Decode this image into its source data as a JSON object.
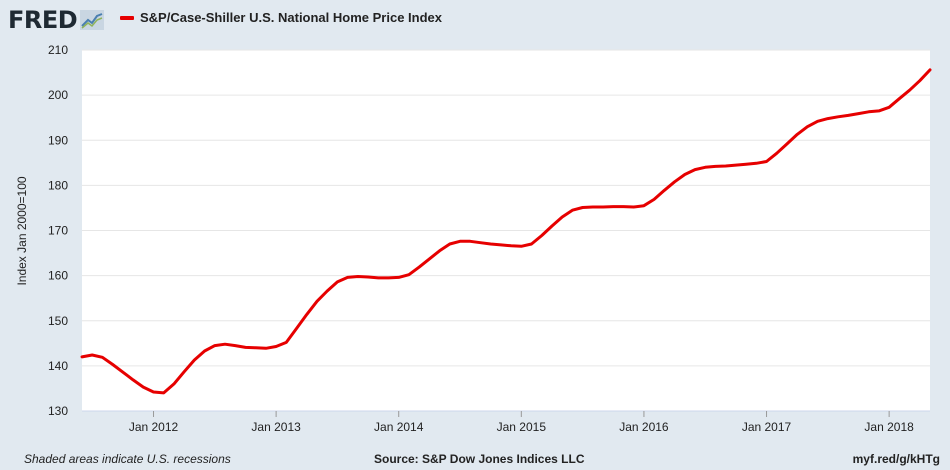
{
  "header": {
    "logo_text": "FRED",
    "legend_label": "S&P/Case-Shiller U.S. National Home Price Index",
    "series_color": "#e60000"
  },
  "footer": {
    "recession_note": "Shaded areas indicate U.S. recessions",
    "source": "Source: S&P Dow Jones Indices LLC",
    "short_url": "myf.red/g/kHTg"
  },
  "chart_data": {
    "type": "line",
    "title": "",
    "xlabel": "",
    "ylabel": "Index Jan 2000=100",
    "ylim": [
      130,
      210
    ],
    "yticks": [
      130,
      140,
      150,
      160,
      170,
      180,
      190,
      200,
      210
    ],
    "xlim": [
      "2011-06",
      "2018-05"
    ],
    "xticks": [
      {
        "value": "2012-01",
        "label": "Jan 2012"
      },
      {
        "value": "2013-01",
        "label": "Jan 2013"
      },
      {
        "value": "2014-01",
        "label": "Jan 2014"
      },
      {
        "value": "2015-01",
        "label": "Jan 2015"
      },
      {
        "value": "2016-01",
        "label": "Jan 2016"
      },
      {
        "value": "2017-01",
        "label": "Jan 2017"
      },
      {
        "value": "2018-01",
        "label": "Jan 2018"
      }
    ],
    "grid": true,
    "series": [
      {
        "name": "S&P/Case-Shiller U.S. National Home Price Index",
        "color": "#e60000",
        "x": [
          "2011-06",
          "2011-07",
          "2011-08",
          "2011-09",
          "2011-10",
          "2011-11",
          "2011-12",
          "2012-01",
          "2012-02",
          "2012-03",
          "2012-04",
          "2012-05",
          "2012-06",
          "2012-07",
          "2012-08",
          "2012-09",
          "2012-10",
          "2012-11",
          "2012-12",
          "2013-01",
          "2013-02",
          "2013-03",
          "2013-04",
          "2013-05",
          "2013-06",
          "2013-07",
          "2013-08",
          "2013-09",
          "2013-10",
          "2013-11",
          "2013-12",
          "2014-01",
          "2014-02",
          "2014-03",
          "2014-04",
          "2014-05",
          "2014-06",
          "2014-07",
          "2014-08",
          "2014-09",
          "2014-10",
          "2014-11",
          "2014-12",
          "2015-01",
          "2015-02",
          "2015-03",
          "2015-04",
          "2015-05",
          "2015-06",
          "2015-07",
          "2015-08",
          "2015-09",
          "2015-10",
          "2015-11",
          "2015-12",
          "2016-01",
          "2016-02",
          "2016-03",
          "2016-04",
          "2016-05",
          "2016-06",
          "2016-07",
          "2016-08",
          "2016-09",
          "2016-10",
          "2016-11",
          "2016-12",
          "2017-01",
          "2017-02",
          "2017-03",
          "2017-04",
          "2017-05",
          "2017-06",
          "2017-07",
          "2017-08",
          "2017-09",
          "2017-10",
          "2017-11",
          "2017-12",
          "2018-01",
          "2018-02",
          "2018-03",
          "2018-04",
          "2018-05"
        ],
        "values": [
          142.0,
          142.4,
          141.9,
          140.3,
          138.6,
          136.9,
          135.3,
          134.2,
          134.0,
          136.0,
          138.7,
          141.3,
          143.3,
          144.5,
          144.8,
          144.5,
          144.1,
          144.0,
          143.9,
          144.3,
          145.2,
          148.3,
          151.4,
          154.3,
          156.6,
          158.6,
          159.6,
          159.8,
          159.7,
          159.5,
          159.5,
          159.6,
          160.2,
          161.9,
          163.7,
          165.5,
          167.0,
          167.6,
          167.6,
          167.3,
          167.0,
          166.8,
          166.6,
          166.5,
          167.0,
          168.9,
          171.0,
          173.0,
          174.5,
          175.1,
          175.2,
          175.2,
          175.3,
          175.3,
          175.2,
          175.5,
          176.9,
          178.9,
          180.8,
          182.4,
          183.5,
          184.0,
          184.2,
          184.3,
          184.5,
          184.7,
          184.9,
          185.3,
          187.1,
          189.2,
          191.3,
          193.0,
          194.2,
          194.8,
          195.2,
          195.5,
          195.9,
          196.3,
          196.5,
          197.3,
          199.2,
          201.1,
          203.2,
          205.6
        ]
      }
    ]
  }
}
